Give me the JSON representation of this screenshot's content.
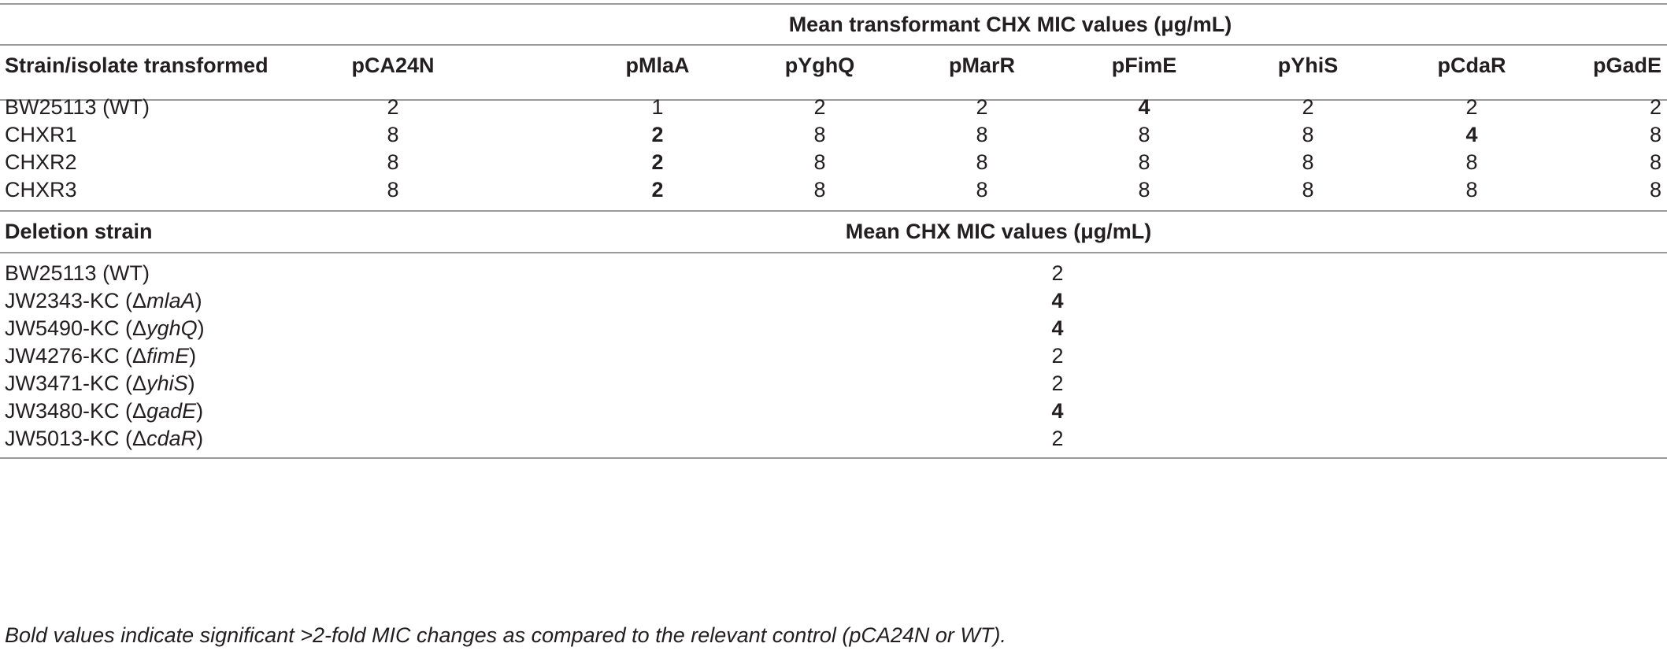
{
  "top_section": {
    "group_header": "Mean transformant CHX MIC values (μg/mL)",
    "columns": [
      "Strain/isolate transformed",
      "pCA24N",
      "pMlaA",
      "pYghQ",
      "pMarR",
      "pFimE",
      "pYhiS",
      "pCdaR",
      "pGadE"
    ],
    "rows": [
      {
        "strain": "BW25113 (WT)",
        "values": [
          "2",
          "1",
          "2",
          "2",
          "4",
          "2",
          "2",
          "2"
        ],
        "bold": [
          false,
          false,
          false,
          false,
          true,
          false,
          false,
          false
        ]
      },
      {
        "strain": "CHXR1",
        "values": [
          "8",
          "2",
          "8",
          "8",
          "8",
          "8",
          "4",
          "8"
        ],
        "bold": [
          false,
          true,
          false,
          false,
          false,
          false,
          true,
          false
        ]
      },
      {
        "strain": "CHXR2",
        "values": [
          "8",
          "2",
          "8",
          "8",
          "8",
          "8",
          "8",
          "8"
        ],
        "bold": [
          false,
          true,
          false,
          false,
          false,
          false,
          false,
          false
        ]
      },
      {
        "strain": "CHXR3",
        "values": [
          "8",
          "2",
          "8",
          "8",
          "8",
          "8",
          "8",
          "8"
        ],
        "bold": [
          false,
          true,
          false,
          false,
          false,
          false,
          false,
          false
        ]
      }
    ]
  },
  "bottom_section": {
    "col_strain": "Deletion strain",
    "col_value": "Mean CHX MIC values (μg/mL)",
    "rows": [
      {
        "prefix": "BW25113 (WT)",
        "gene": "",
        "suffix": "",
        "value": "2",
        "bold": false
      },
      {
        "prefix": "JW2343-KC (Δ",
        "gene": "mlaA",
        "suffix": ")",
        "value": "4",
        "bold": true
      },
      {
        "prefix": "JW5490-KC (Δ",
        "gene": "yghQ",
        "suffix": ")",
        "value": "4",
        "bold": true
      },
      {
        "prefix": "JW4276-KC (Δ",
        "gene": "fimE",
        "suffix": ")",
        "value": "2",
        "bold": false
      },
      {
        "prefix": "JW3471-KC (Δ",
        "gene": "yhiS",
        "suffix": ")",
        "value": "2",
        "bold": false
      },
      {
        "prefix": "JW3480-KC (Δ",
        "gene": "gadE",
        "suffix": ")",
        "value": "4",
        "bold": true
      },
      {
        "prefix": "JW5013-KC (Δ",
        "gene": "cdaR",
        "suffix": ")",
        "value": "2",
        "bold": false
      }
    ]
  },
  "footnote": "Bold values indicate significant >2-fold MIC changes as compared to the relevant control (pCA24N or WT)."
}
